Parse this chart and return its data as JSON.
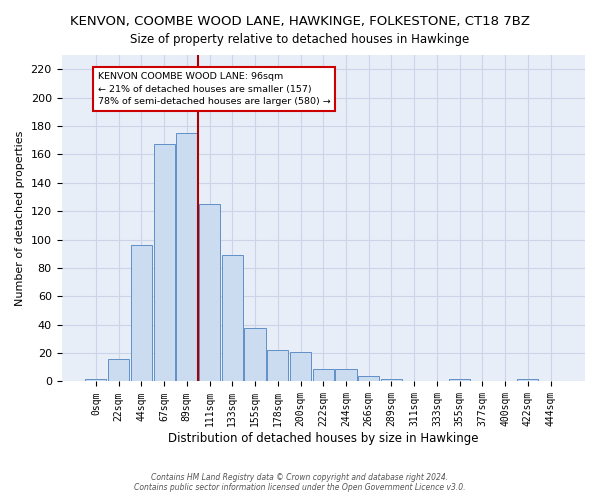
{
  "title": "KENVON, COOMBE WOOD LANE, HAWKINGE, FOLKESTONE, CT18 7BZ",
  "subtitle": "Size of property relative to detached houses in Hawkinge",
  "xlabel": "Distribution of detached houses by size in Hawkinge",
  "ylabel": "Number of detached properties",
  "bin_labels": [
    "0sqm",
    "22sqm",
    "44sqm",
    "67sqm",
    "89sqm",
    "111sqm",
    "133sqm",
    "155sqm",
    "178sqm",
    "200sqm",
    "222sqm",
    "244sqm",
    "266sqm",
    "289sqm",
    "311sqm",
    "333sqm",
    "355sqm",
    "377sqm",
    "400sqm",
    "422sqm",
    "444sqm"
  ],
  "bar_heights": [
    2,
    16,
    96,
    167,
    175,
    125,
    89,
    38,
    22,
    21,
    9,
    9,
    4,
    2,
    0,
    0,
    2,
    0,
    0,
    2,
    0
  ],
  "bar_color": "#ccdcf0",
  "bar_edge_color": "#6090c8",
  "red_line_x": 4.5,
  "annotation_line1": "KENVON COOMBE WOOD LANE: 96sqm",
  "annotation_line2": "← 21% of detached houses are smaller (157)",
  "annotation_line3": "78% of semi-detached houses are larger (580) →",
  "annotation_box_edge_color": "#cc0000",
  "red_line_color": "#aa0000",
  "ylim": [
    0,
    230
  ],
  "yticks": [
    0,
    20,
    40,
    60,
    80,
    100,
    120,
    140,
    160,
    180,
    200,
    220
  ],
  "grid_color": "#ccd5e8",
  "background_color": "#e8eef8",
  "footer_line1": "Contains HM Land Registry data © Crown copyright and database right 2024.",
  "footer_line2": "Contains public sector information licensed under the Open Government Licence v3.0."
}
